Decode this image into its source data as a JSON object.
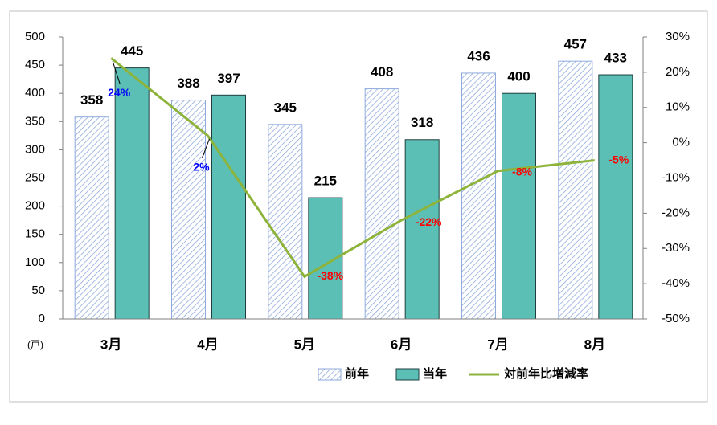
{
  "chart_data": {
    "type": "bar",
    "unit_label": "(戸)",
    "categories": [
      "3月",
      "4月",
      "5月",
      "6月",
      "7月",
      "8月"
    ],
    "series": [
      {
        "name": "前年",
        "color": "#8faadc",
        "pattern": "hatch",
        "values": [
          358,
          388,
          345,
          408,
          436,
          457
        ]
      },
      {
        "name": "当年",
        "color": "#5bbfb5",
        "values": [
          445,
          397,
          215,
          318,
          400,
          433
        ]
      },
      {
        "name": "対前年比増減率",
        "type": "line",
        "axis": "y2",
        "color": "#8db33a",
        "values": [
          24,
          2,
          -38,
          -22,
          -8,
          -5
        ],
        "value_labels": [
          "24%",
          "2%",
          "-38%",
          "-22%",
          "-8%",
          "-5%"
        ]
      }
    ],
    "ylim": [
      0,
      500
    ],
    "yticks": [
      0,
      50,
      100,
      150,
      200,
      250,
      300,
      350,
      400,
      450,
      500
    ],
    "y2lim": [
      -50,
      30
    ],
    "y2ticks": [
      {
        "value": -50,
        "label": "-50%"
      },
      {
        "value": -40,
        "label": "-40%"
      },
      {
        "value": -30,
        "label": "-30%"
      },
      {
        "value": -20,
        "label": "-20%"
      },
      {
        "value": -10,
        "label": "-10%"
      },
      {
        "value": 0,
        "label": "0%"
      },
      {
        "value": 10,
        "label": "10%"
      },
      {
        "value": 20,
        "label": "20%"
      },
      {
        "value": 30,
        "label": "30%"
      }
    ],
    "grid": false
  }
}
